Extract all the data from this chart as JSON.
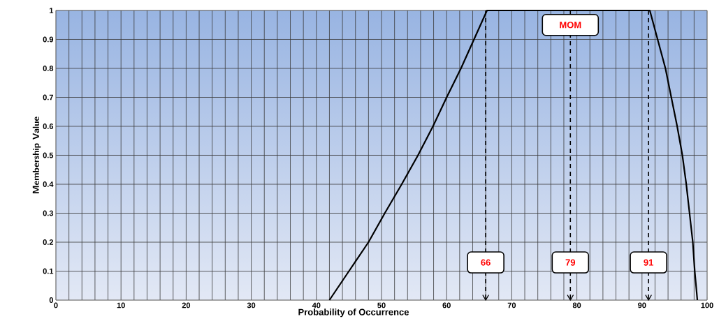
{
  "chart_data": {
    "type": "line",
    "xlabel": "Probability  of Occurrence",
    "ylabel": "Membership Value",
    "x": [
      42,
      45,
      48,
      50.5,
      53.1,
      55.6,
      57.9,
      60,
      62.2,
      64.2,
      66.2,
      91.2,
      92.4,
      93.6,
      94.5,
      95.4,
      96.2,
      96.8,
      97.3,
      97.8,
      98.1,
      98.5
    ],
    "series": [
      {
        "color": "#000000",
        "values": [
          0,
          0.1,
          0.2,
          0.3,
          0.4,
          0.5,
          0.6,
          0.7,
          0.8,
          0.9,
          1,
          1,
          0.9,
          0.8,
          0.7,
          0.6,
          0.5,
          0.4,
          0.3,
          0.2,
          0.1,
          0
        ]
      }
    ],
    "xlim": [
      0,
      100
    ],
    "ylim": [
      0,
      1
    ],
    "xticks": [
      0,
      10,
      20,
      30,
      40,
      50,
      60,
      70,
      80,
      90,
      100
    ],
    "yticks": [
      0,
      0.1,
      0.2,
      0.3,
      0.4,
      0.5,
      0.6,
      0.7,
      0.8,
      0.9,
      1
    ],
    "grid": true,
    "marker": "none",
    "line_style": "solid",
    "ref_lines": [
      {
        "axis": "x",
        "value": 66,
        "label": "66",
        "color": "#000000",
        "line_style": "dashed"
      },
      {
        "axis": "x",
        "value": 79,
        "label": "79",
        "color": "#000000",
        "line_style": "dashed"
      },
      {
        "axis": "x",
        "value": 91,
        "label": "91",
        "color": "#000000",
        "line_style": "dashed"
      }
    ],
    "annotations": [
      {
        "text": "MOM",
        "x": 79,
        "y": 0.95
      }
    ]
  }
}
